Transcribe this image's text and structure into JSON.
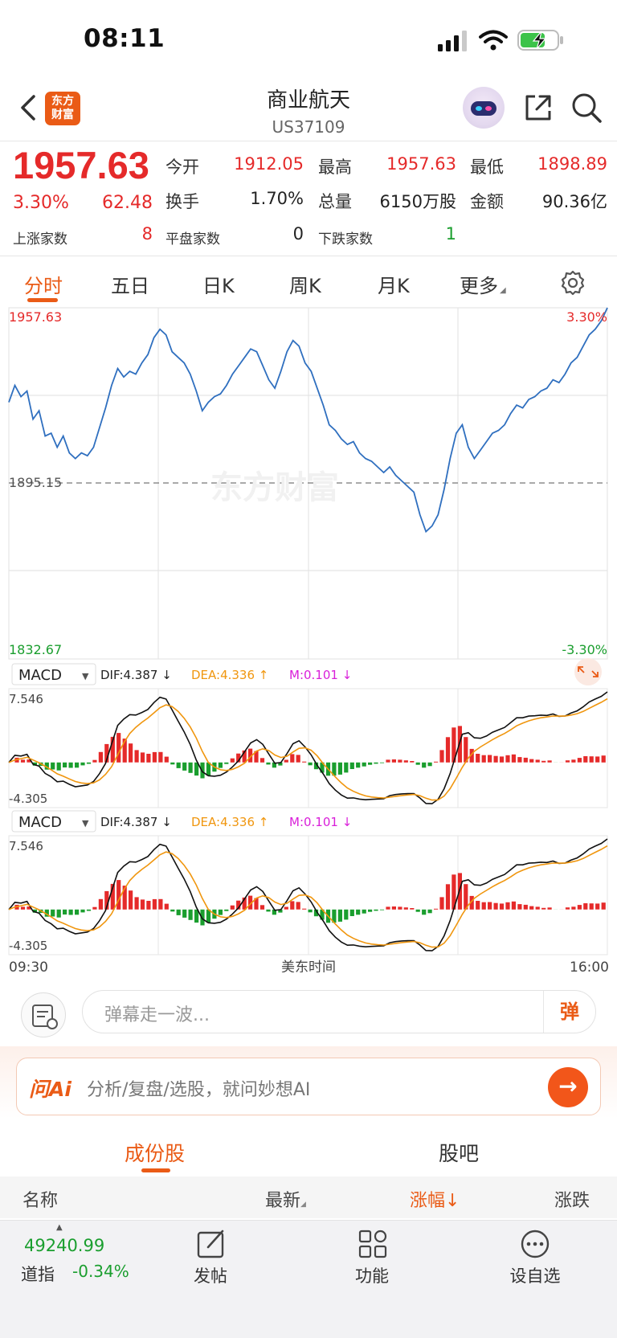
{
  "status": {
    "time": "08:11"
  },
  "nav": {
    "logo_text": "东方财富",
    "title": "商业航天",
    "code": "US37109"
  },
  "quote": {
    "price": "1957.63",
    "change_pct": "3.30%",
    "change": "62.48",
    "open_label": "今开",
    "open": "1912.05",
    "high_label": "最高",
    "high": "1957.63",
    "low_label": "最低",
    "low": "1898.89",
    "turnover_label": "换手",
    "turnover": "1.70%",
    "volume_label": "总量",
    "volume": "6150万股",
    "amount_label": "金额",
    "amount": "90.36亿",
    "up_label": "上涨家数",
    "up": "8",
    "flat_label": "平盘家数",
    "flat": "0",
    "down_label": "下跌家数",
    "down": "1"
  },
  "tabs": [
    "分时",
    "五日",
    "日K",
    "周K",
    "月K",
    "更多"
  ],
  "price_chart": {
    "y_max_label": "1957.63",
    "y_mid_label": "1895.15",
    "y_min_label": "1832.67",
    "pct_max_label": "3.30%",
    "pct_min_label": "-3.30%",
    "watermark": "东方财富"
  },
  "macd": {
    "title": "MACD",
    "dif": "DIF:4.387 ↓",
    "dea": "DEA:4.336 ↑",
    "m": "M:0.101 ↓",
    "y_top_label": "7.546",
    "y_bottom_label": "-4.305"
  },
  "time_axis": {
    "start": "09:30",
    "mid": "美东时间",
    "end": "16:00"
  },
  "danmu": {
    "placeholder": "弹幕走一波...",
    "button": "弹"
  },
  "ai": {
    "logo": "问Ai",
    "placeholder": "分析/复盘/选股，就问妙想AI"
  },
  "section_tabs": [
    "成份股",
    "股吧"
  ],
  "table_header": {
    "name": "名称",
    "latest": "最新",
    "change_pct": "涨幅↓",
    "change": "涨跌"
  },
  "bottom": {
    "index_value": "49240.99",
    "index_name": "道指",
    "index_pct": "-0.34%",
    "items": [
      "发帖",
      "功能",
      "设自选"
    ]
  },
  "colors": {
    "accent": "#ea5b16",
    "up": "#e52a2a",
    "down": "#1a9e2e",
    "line": "#2f6fbf",
    "dea": "#f0960e",
    "m": "#d91fd9"
  },
  "chart_data": {
    "type": "line",
    "title": "",
    "xlabel": "美东时间",
    "ylabel": "",
    "x_range": [
      "09:30",
      "16:00"
    ],
    "ylim": [
      1832.67,
      1957.63
    ],
    "reference": 1895.15,
    "series": [
      {
        "values": [
          1924,
          1930,
          1926,
          1928,
          1918,
          1921,
          1912,
          1913,
          1908,
          1912,
          1906,
          1904,
          1906,
          1905,
          1908,
          1915,
          1922,
          1930,
          1936,
          1933,
          1935,
          1934,
          1938,
          1941,
          1947,
          1950,
          1948,
          1942,
          1940,
          1938,
          1934,
          1928,
          1921,
          1924,
          1926,
          1927,
          1930,
          1934,
          1937,
          1940,
          1943,
          1942,
          1937,
          1932,
          1929,
          1935,
          1942,
          1946,
          1944,
          1938,
          1935,
          1929,
          1923,
          1916,
          1914,
          1911,
          1909,
          1910,
          1906,
          1904,
          1903,
          1901,
          1899,
          1901,
          1898,
          1896,
          1894,
          1892,
          1884,
          1878,
          1880,
          1884,
          1893,
          1904,
          1913,
          1916,
          1908,
          1904,
          1907,
          1910,
          1913,
          1914,
          1916,
          1920,
          1923,
          1922,
          1925,
          1926,
          1928,
          1929,
          1932,
          1931,
          1934,
          1938,
          1940,
          1944,
          1948,
          1950,
          1953,
          1957.63
        ]
      }
    ]
  }
}
